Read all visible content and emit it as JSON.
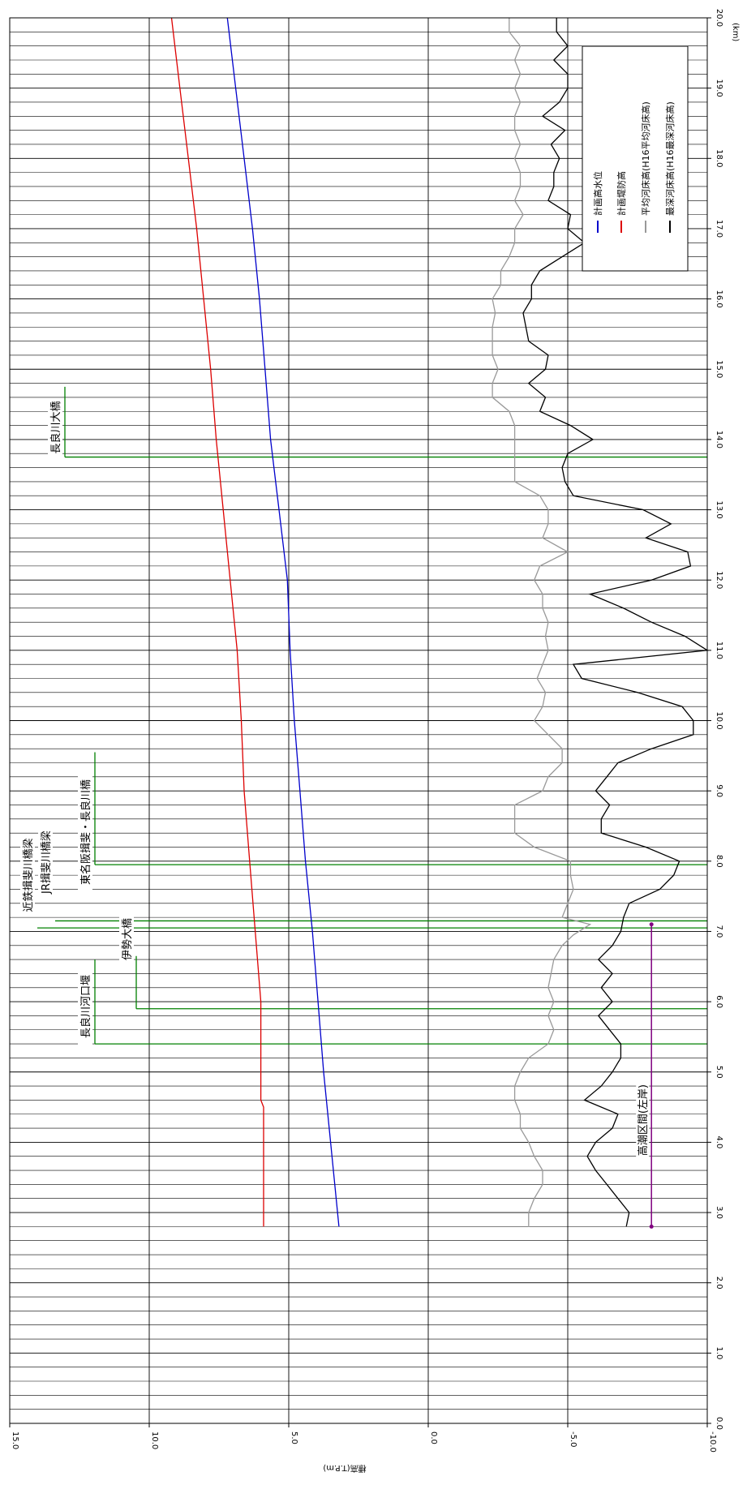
{
  "chart_data": {
    "type": "line",
    "x_unit": "(km)",
    "ylabel": "標高(T.P.m)",
    "xlim": [
      0,
      20
    ],
    "ylim": [
      -10,
      15
    ],
    "x_ticks": [
      "0.0",
      "1.0",
      "2.0",
      "3.0",
      "4.0",
      "5.0",
      "6.0",
      "7.0",
      "8.0",
      "9.0",
      "10.0",
      "11.0",
      "12.0",
      "13.0",
      "14.0",
      "15.0",
      "16.0",
      "17.0",
      "18.0",
      "19.0",
      "20.0"
    ],
    "y_ticks": [
      "-10.0",
      "-5.0",
      "0.0",
      "5.0",
      "10.0",
      "15.0"
    ],
    "legend": {
      "position": "top-right"
    },
    "series": [
      {
        "name": "計画高水位",
        "color": "#0000cc",
        "points": [
          [
            2.8,
            3.2
          ],
          [
            4.0,
            3.5
          ],
          [
            5.0,
            3.75
          ],
          [
            6.0,
            3.95
          ],
          [
            7.0,
            4.15
          ],
          [
            8.0,
            4.4
          ],
          [
            9.0,
            4.6
          ],
          [
            10.0,
            4.8
          ],
          [
            11.0,
            4.95
          ],
          [
            12.0,
            5.05
          ],
          [
            13.0,
            5.35
          ],
          [
            14.0,
            5.65
          ],
          [
            15.0,
            5.85
          ],
          [
            16.0,
            6.05
          ],
          [
            17.0,
            6.3
          ],
          [
            18.0,
            6.6
          ],
          [
            19.0,
            6.9
          ],
          [
            20.0,
            7.2
          ]
        ]
      },
      {
        "name": "計画堤防高",
        "color": "#dd0000",
        "points": [
          [
            2.8,
            5.9
          ],
          [
            4.0,
            5.9
          ],
          [
            4.5,
            5.9
          ],
          [
            4.6,
            6.0
          ],
          [
            5.0,
            6.0
          ],
          [
            6.0,
            6.0
          ],
          [
            7.0,
            6.2
          ],
          [
            8.0,
            6.4
          ],
          [
            9.0,
            6.6
          ],
          [
            10.0,
            6.7
          ],
          [
            11.0,
            6.85
          ],
          [
            12.0,
            7.1
          ],
          [
            13.0,
            7.35
          ],
          [
            14.0,
            7.6
          ],
          [
            15.0,
            7.8
          ],
          [
            16.0,
            8.05
          ],
          [
            17.0,
            8.3
          ],
          [
            18.0,
            8.6
          ],
          [
            19.0,
            8.9
          ],
          [
            20.0,
            9.2
          ]
        ]
      },
      {
        "name": "平均河床高(H16平均河床高)",
        "color": "#999999",
        "points": [
          [
            2.8,
            -3.6
          ],
          [
            3.0,
            -3.6
          ],
          [
            3.2,
            -3.8
          ],
          [
            3.4,
            -4.1
          ],
          [
            3.6,
            -4.1
          ],
          [
            3.8,
            -3.8
          ],
          [
            4.0,
            -3.6
          ],
          [
            4.2,
            -3.3
          ],
          [
            4.4,
            -3.3
          ],
          [
            4.6,
            -3.1
          ],
          [
            4.8,
            -3.1
          ],
          [
            5.0,
            -3.3
          ],
          [
            5.2,
            -3.6
          ],
          [
            5.4,
            -4.3
          ],
          [
            5.6,
            -4.5
          ],
          [
            5.8,
            -4.3
          ],
          [
            6.0,
            -4.5
          ],
          [
            6.2,
            -4.3
          ],
          [
            6.4,
            -4.4
          ],
          [
            6.6,
            -4.5
          ],
          [
            6.8,
            -4.8
          ],
          [
            6.95,
            -5.2
          ],
          [
            7.1,
            -5.8
          ],
          [
            7.2,
            -4.8
          ],
          [
            7.4,
            -5.0
          ],
          [
            7.6,
            -5.2
          ],
          [
            7.8,
            -5.1
          ],
          [
            8.0,
            -5.1
          ],
          [
            8.2,
            -3.8
          ],
          [
            8.4,
            -3.1
          ],
          [
            8.6,
            -3.1
          ],
          [
            8.8,
            -3.1
          ],
          [
            9.0,
            -4.1
          ],
          [
            9.2,
            -4.3
          ],
          [
            9.4,
            -4.8
          ],
          [
            9.6,
            -4.8
          ],
          [
            9.8,
            -4.3
          ],
          [
            10.0,
            -3.8
          ],
          [
            10.2,
            -4.1
          ],
          [
            10.4,
            -4.2
          ],
          [
            10.6,
            -3.9
          ],
          [
            10.8,
            -4.1
          ],
          [
            11.0,
            -4.3
          ],
          [
            11.2,
            -4.2
          ],
          [
            11.4,
            -4.3
          ],
          [
            11.6,
            -4.1
          ],
          [
            11.8,
            -4.1
          ],
          [
            12.0,
            -3.8
          ],
          [
            12.2,
            -4.0
          ],
          [
            12.4,
            -5.0
          ],
          [
            12.6,
            -4.1
          ],
          [
            12.8,
            -4.3
          ],
          [
            13.0,
            -4.3
          ],
          [
            13.2,
            -4.0
          ],
          [
            13.4,
            -3.1
          ],
          [
            13.6,
            -3.1
          ],
          [
            13.8,
            -3.1
          ],
          [
            14.0,
            -3.1
          ],
          [
            14.2,
            -3.1
          ],
          [
            14.4,
            -2.9
          ],
          [
            14.6,
            -2.3
          ],
          [
            14.8,
            -2.3
          ],
          [
            15.0,
            -2.5
          ],
          [
            15.2,
            -2.3
          ],
          [
            15.4,
            -2.3
          ],
          [
            15.6,
            -2.3
          ],
          [
            15.8,
            -2.4
          ],
          [
            16.0,
            -2.3
          ],
          [
            16.2,
            -2.6
          ],
          [
            16.4,
            -2.6
          ],
          [
            16.6,
            -2.9
          ],
          [
            16.8,
            -3.1
          ],
          [
            17.0,
            -3.1
          ],
          [
            17.2,
            -3.4
          ],
          [
            17.4,
            -3.1
          ],
          [
            17.6,
            -3.3
          ],
          [
            17.8,
            -3.3
          ],
          [
            18.0,
            -3.1
          ],
          [
            18.2,
            -3.3
          ],
          [
            18.4,
            -3.1
          ],
          [
            18.6,
            -3.1
          ],
          [
            18.8,
            -3.3
          ],
          [
            19.0,
            -3.1
          ],
          [
            19.2,
            -3.3
          ],
          [
            19.4,
            -3.1
          ],
          [
            19.6,
            -3.3
          ],
          [
            19.8,
            -2.9
          ],
          [
            20.0,
            -2.9
          ]
        ]
      },
      {
        "name": "最深河床高(H16最深河床高)",
        "color": "#000000",
        "points": [
          [
            2.8,
            -7.1
          ],
          [
            3.0,
            -7.2
          ],
          [
            3.2,
            -6.8
          ],
          [
            3.4,
            -6.4
          ],
          [
            3.6,
            -6.0
          ],
          [
            3.8,
            -5.7
          ],
          [
            4.0,
            -6.0
          ],
          [
            4.2,
            -6.6
          ],
          [
            4.4,
            -6.8
          ],
          [
            4.6,
            -5.6
          ],
          [
            4.8,
            -6.2
          ],
          [
            5.0,
            -6.6
          ],
          [
            5.2,
            -6.9
          ],
          [
            5.4,
            -6.9
          ],
          [
            5.6,
            -6.5
          ],
          [
            5.8,
            -6.1
          ],
          [
            6.0,
            -6.6
          ],
          [
            6.2,
            -6.2
          ],
          [
            6.4,
            -6.6
          ],
          [
            6.6,
            -6.1
          ],
          [
            6.8,
            -6.6
          ],
          [
            7.0,
            -6.9
          ],
          [
            7.2,
            -7.0
          ],
          [
            7.4,
            -7.2
          ],
          [
            7.6,
            -8.3
          ],
          [
            7.8,
            -8.8
          ],
          [
            8.0,
            -9.0
          ],
          [
            8.2,
            -7.8
          ],
          [
            8.4,
            -6.2
          ],
          [
            8.6,
            -6.2
          ],
          [
            8.8,
            -6.5
          ],
          [
            9.0,
            -6.0
          ],
          [
            9.2,
            -6.4
          ],
          [
            9.4,
            -6.8
          ],
          [
            9.6,
            -8.0
          ],
          [
            9.8,
            -9.5
          ],
          [
            10.0,
            -9.5
          ],
          [
            10.2,
            -9.1
          ],
          [
            10.4,
            -7.5
          ],
          [
            10.6,
            -5.5
          ],
          [
            10.8,
            -5.2
          ],
          [
            11.0,
            -10.0
          ],
          [
            11.2,
            -9.2
          ],
          [
            11.4,
            -8.0
          ],
          [
            11.6,
            -7.0
          ],
          [
            11.8,
            -5.8
          ],
          [
            12.0,
            -8.0
          ],
          [
            12.2,
            -9.4
          ],
          [
            12.4,
            -9.3
          ],
          [
            12.6,
            -7.8
          ],
          [
            12.8,
            -8.7
          ],
          [
            13.0,
            -7.7
          ],
          [
            13.2,
            -5.2
          ],
          [
            13.4,
            -4.9
          ],
          [
            13.6,
            -4.8
          ],
          [
            13.8,
            -5.0
          ],
          [
            14.0,
            -5.9
          ],
          [
            14.2,
            -5.1
          ],
          [
            14.4,
            -4.0
          ],
          [
            14.6,
            -4.2
          ],
          [
            14.8,
            -3.6
          ],
          [
            15.0,
            -4.2
          ],
          [
            15.2,
            -4.3
          ],
          [
            15.4,
            -3.6
          ],
          [
            15.6,
            -3.5
          ],
          [
            15.8,
            -3.4
          ],
          [
            16.0,
            -3.7
          ],
          [
            16.2,
            -3.7
          ],
          [
            16.4,
            -4.0
          ],
          [
            16.6,
            -4.8
          ],
          [
            16.8,
            -5.6
          ],
          [
            17.0,
            -5.0
          ],
          [
            17.2,
            -5.1
          ],
          [
            17.4,
            -4.3
          ],
          [
            17.6,
            -4.5
          ],
          [
            17.8,
            -4.5
          ],
          [
            18.0,
            -4.7
          ],
          [
            18.2,
            -4.4
          ],
          [
            18.4,
            -4.9
          ],
          [
            18.6,
            -4.1
          ],
          [
            18.8,
            -4.7
          ],
          [
            19.0,
            -5.0
          ],
          [
            19.2,
            -5.0
          ],
          [
            19.4,
            -4.5
          ],
          [
            19.6,
            -5.0
          ],
          [
            19.8,
            -4.6
          ],
          [
            20.0,
            -4.6
          ]
        ]
      }
    ],
    "annotations": [
      {
        "label": "長良川大橋",
        "x": [
          13.75,
          14.75
        ],
        "color": "#008000"
      },
      {
        "label": "近鉄揖斐川橋梁",
        "x": [
          7.05,
          7.05
        ],
        "color": "#008000"
      },
      {
        "label": "JR揖斐川橋梁",
        "x": [
          7.15,
          7.15
        ],
        "color": "#008000"
      },
      {
        "label": "東名阪揖斐・長良川橋",
        "x": [
          7.95,
          9.55
        ],
        "color": "#008000"
      },
      {
        "label": "長良川河口堰",
        "x": [
          5.4,
          6.6
        ],
        "color": "#008000"
      },
      {
        "label": "伊勢大橋",
        "x": [
          5.9,
          6.65
        ],
        "color": "#008000"
      }
    ],
    "range_annotation": {
      "label": "高潮区間(左岸)",
      "x": [
        2.8,
        7.1
      ],
      "y": -8.0,
      "color": "#800080"
    }
  }
}
